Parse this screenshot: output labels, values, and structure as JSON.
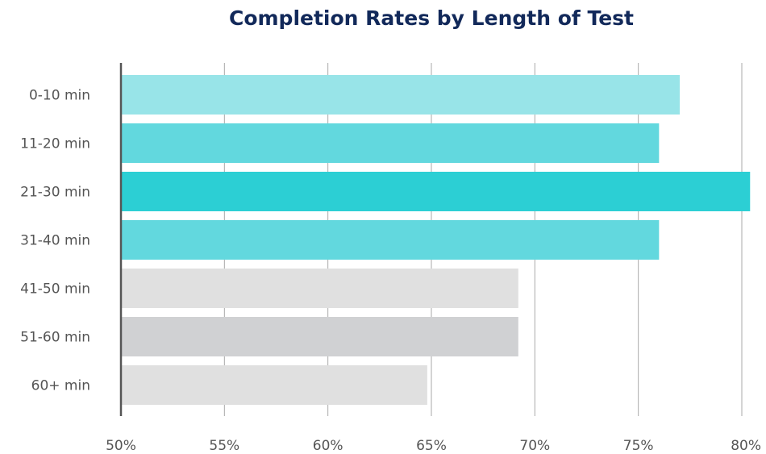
{
  "chart_data": {
    "type": "bar",
    "orientation": "horizontal",
    "title": "Completion Rates by Length of Test",
    "xlabel": "",
    "ylabel": "",
    "categories": [
      "0-10 min",
      "11-20 min",
      "21-30 min",
      "31-40 min",
      "41-50 min",
      "51-60 min",
      "60+ min"
    ],
    "values": [
      77,
      76,
      80.4,
      76,
      69.2,
      69.2,
      64.8
    ],
    "bar_colors": [
      "#98e4e8",
      "#62d8de",
      "#2ccfd4",
      "#62d8de",
      "#e0e0e0",
      "#d0d1d3",
      "#e0e0e0"
    ],
    "xlim": [
      50,
      80
    ],
    "xticks": [
      50,
      55,
      60,
      65,
      70,
      75,
      80
    ],
    "xtick_labels": [
      "50%",
      "55%",
      "60%",
      "65%",
      "70%",
      "75%",
      "80%"
    ],
    "grid": "vertical",
    "grid_color": "#aaaaaa",
    "axis_color": "#555555",
    "legend": "none"
  }
}
